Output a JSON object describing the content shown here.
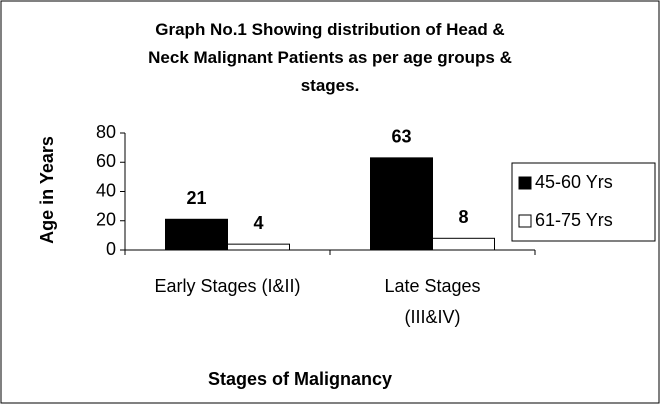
{
  "chart_data": {
    "type": "bar",
    "title": "Graph No.1 Showing distribution of Head &\nNeck Malignant Patients as per age groups &\nstages.",
    "ylabel": "Age in Years",
    "xlabel": "Stages of  Malignancy",
    "categories": [
      "Early Stages (I&II)",
      "Late Stages\n(III&IV)"
    ],
    "series": [
      {
        "name": "45-60 Yrs",
        "color": "#000000",
        "values": [
          21,
          63
        ]
      },
      {
        "name": "61-75 Yrs",
        "color": "#ffffff",
        "values": [
          4,
          8
        ]
      }
    ],
    "ylim": [
      0,
      80
    ],
    "yticks": [
      0,
      20,
      40,
      60,
      80
    ],
    "legend": "right"
  }
}
